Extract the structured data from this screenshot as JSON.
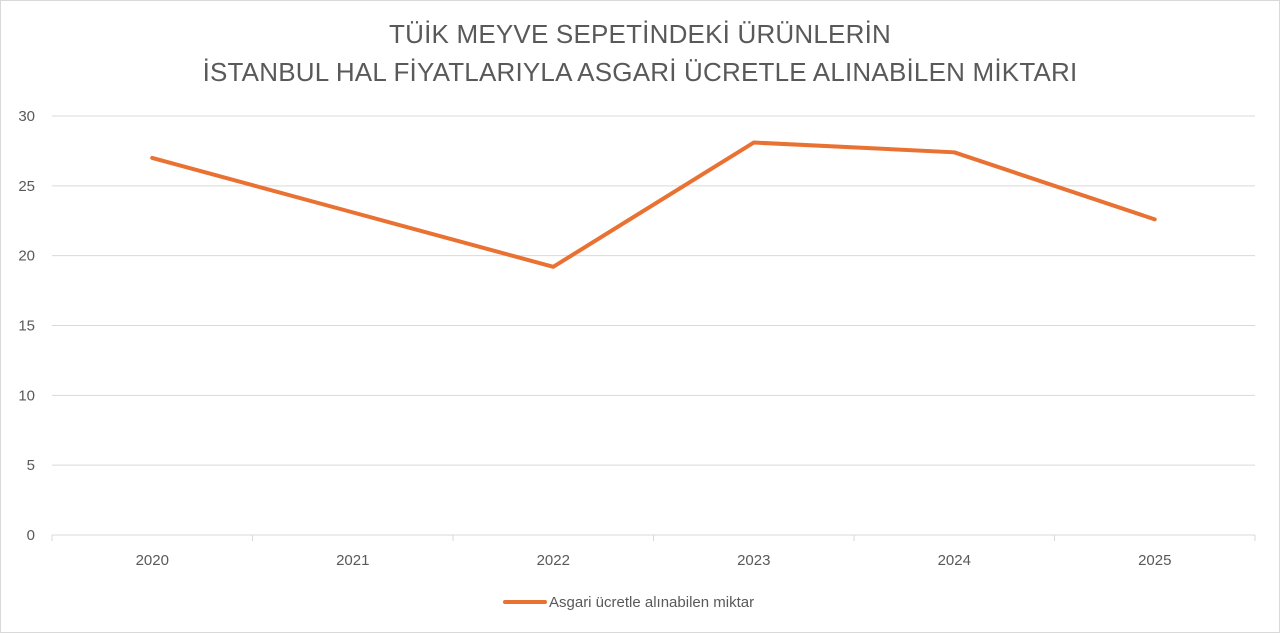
{
  "chart_data": {
    "type": "line",
    "title_lines": [
      "TÜİK MEYVE SEPETİNDEKİ ÜRÜNLERİN",
      "İSTANBUL HAL FİYATLARIYLA ASGARİ ÜCRETLE ALINABİLEN MİKTARI"
    ],
    "categories": [
      "2020",
      "2021",
      "2022",
      "2023",
      "2024",
      "2025"
    ],
    "series": [
      {
        "name": "Asgari ücretle alınabilen miktar",
        "color": "#E97132",
        "values": [
          27.0,
          23.1,
          19.2,
          28.1,
          27.4,
          22.6
        ]
      }
    ],
    "ylim": [
      0,
      30
    ],
    "yticks": [
      0,
      5,
      10,
      15,
      20,
      25,
      30
    ],
    "grid": true,
    "legend_position": "bottom"
  }
}
